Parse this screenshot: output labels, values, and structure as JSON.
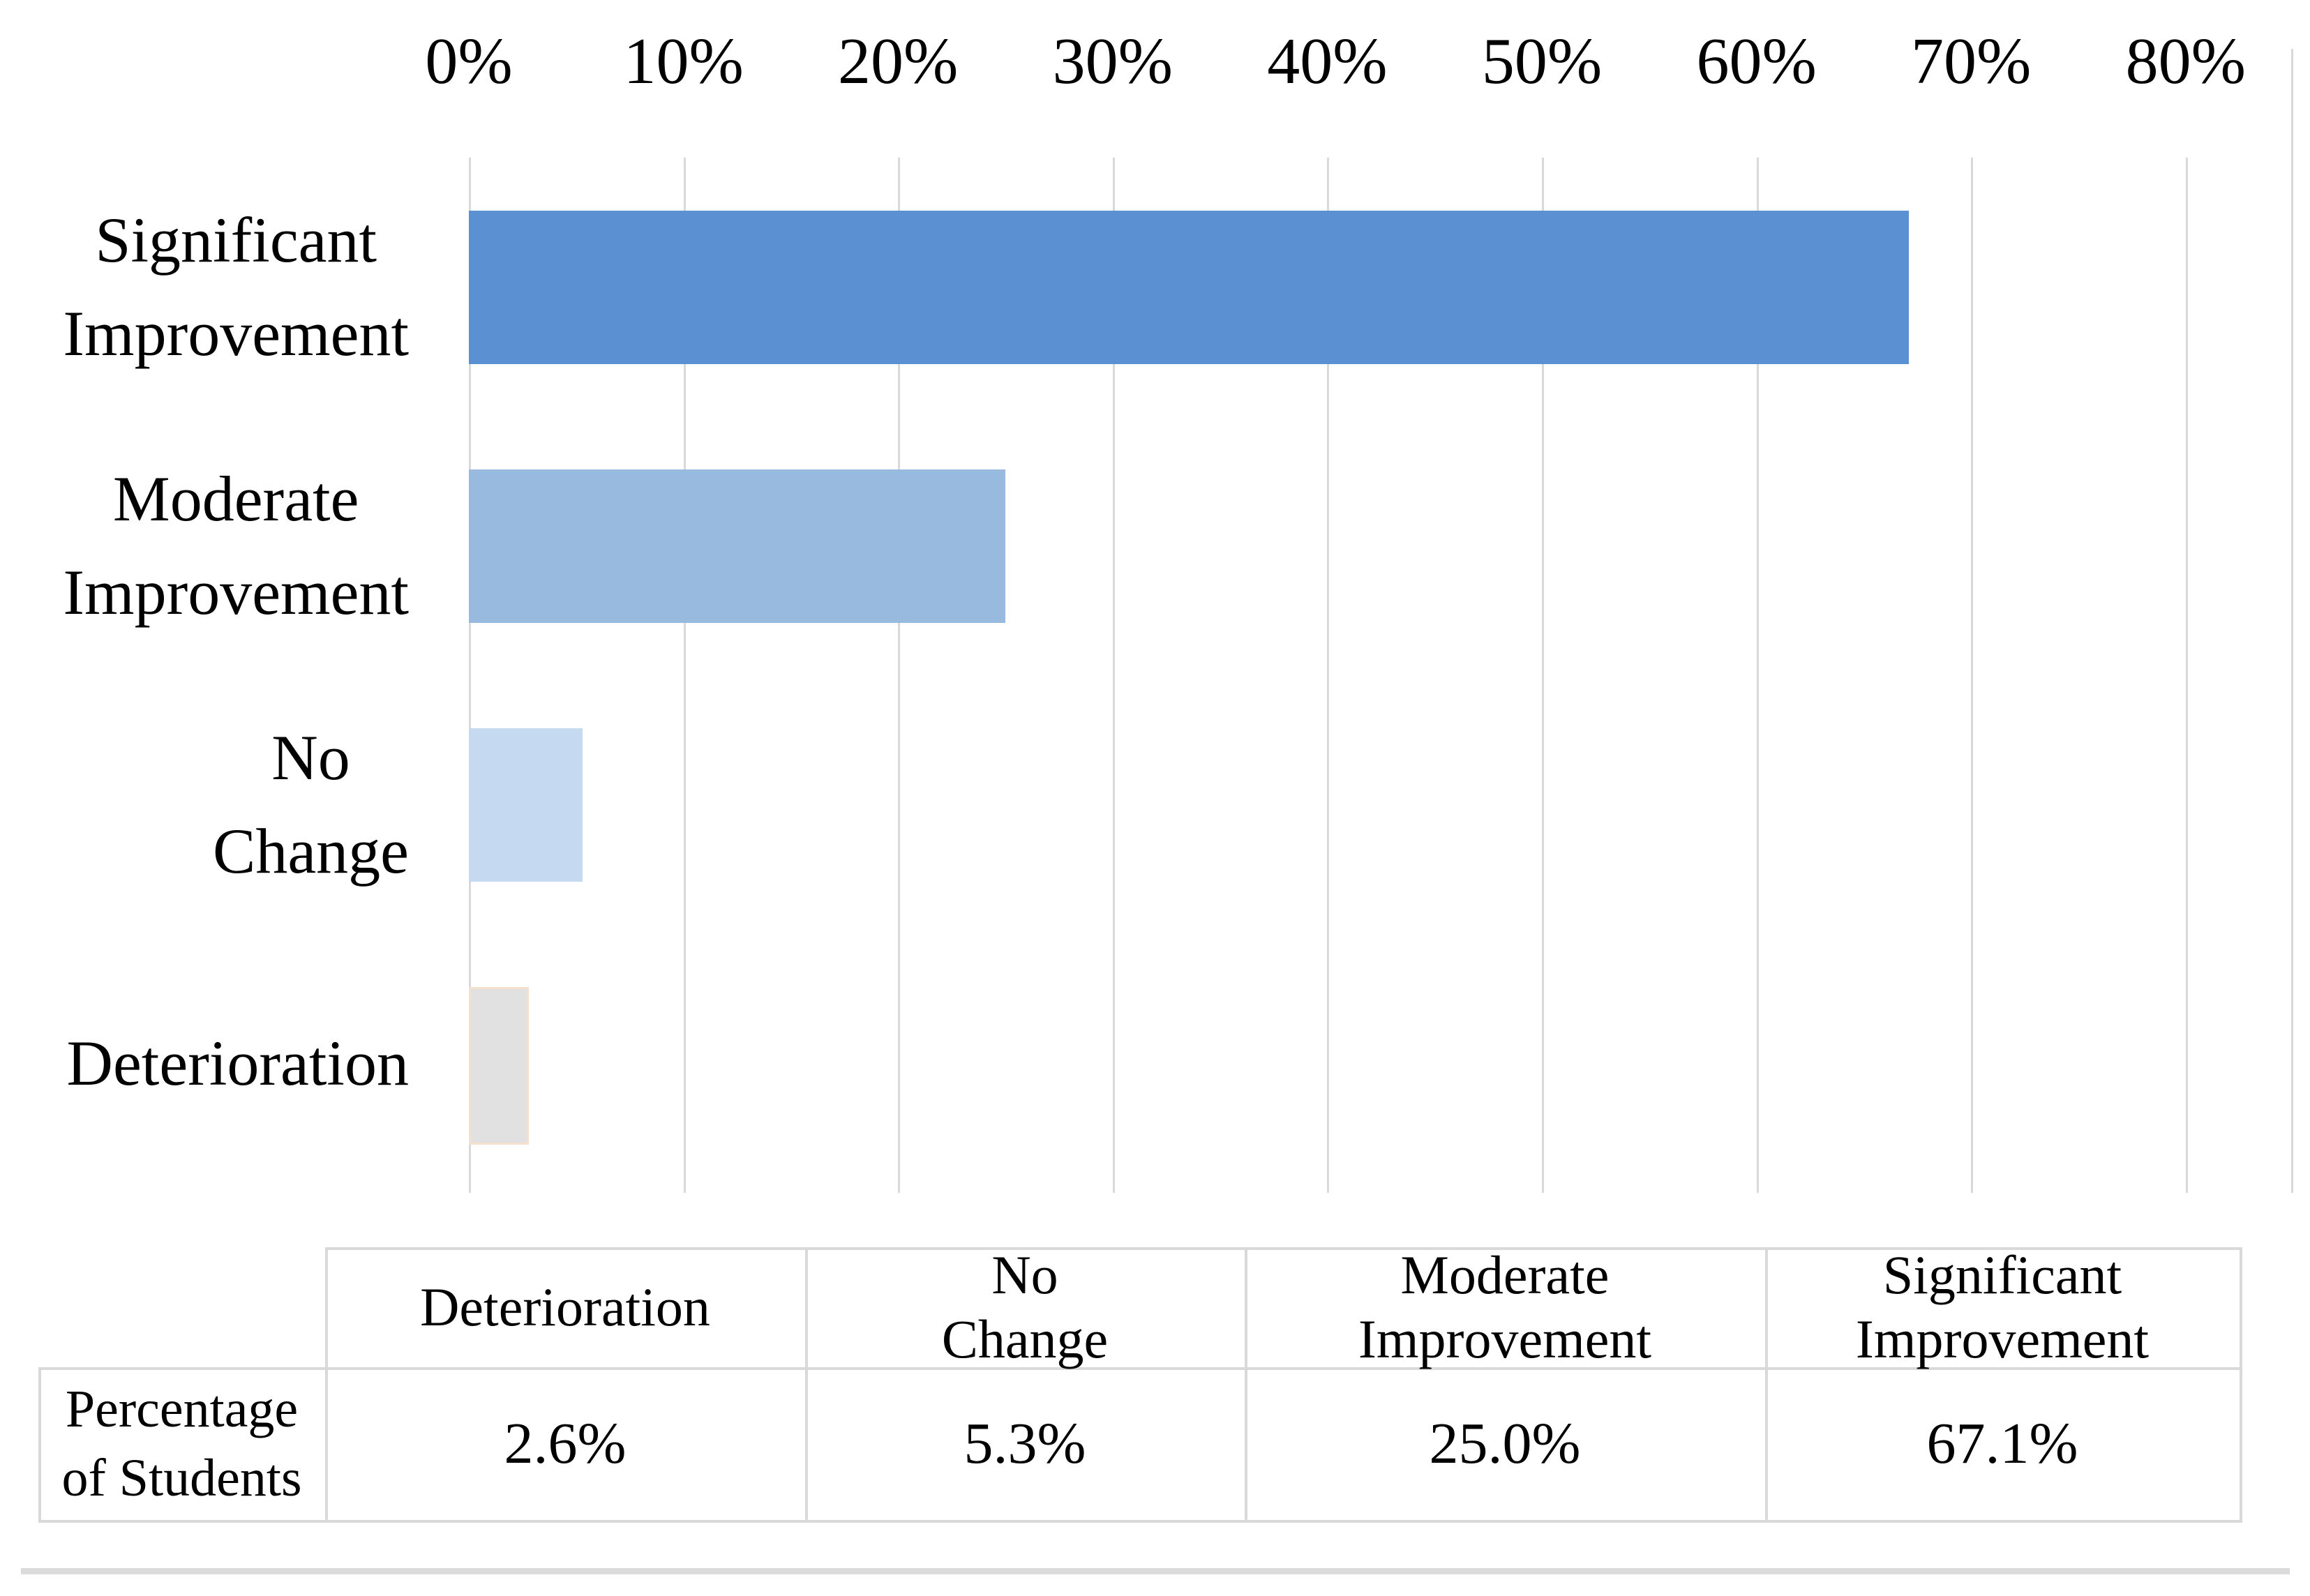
{
  "chart_data": {
    "type": "bar",
    "orientation": "horizontal",
    "title": "",
    "xlabel": "",
    "ylabel": "",
    "categories": [
      "Significant Improvement",
      "Moderate Improvement",
      "No Change",
      "Deterioration"
    ],
    "category_display": [
      "Significant\nImprovement",
      "Moderate\nImprovement",
      "No\nChange",
      "Deterioration"
    ],
    "values": [
      67.1,
      25.0,
      5.3,
      2.6
    ],
    "value_labels": [
      "67.1%",
      "25.0%",
      "5.3%",
      "2.6%"
    ],
    "x_ticks": [
      "0%",
      "10%",
      "20%",
      "30%",
      "40%",
      "50%",
      "60%",
      "70%",
      "80%"
    ],
    "x_tick_values": [
      0,
      10,
      20,
      30,
      40,
      50,
      60,
      70,
      80
    ],
    "xlim": [
      0,
      85
    ],
    "grid": true,
    "legend": "none",
    "axis_position": "top",
    "bar_colors": [
      "#5B90D2",
      "#98BADF",
      "#C5D9F0",
      "#E2E1E1"
    ],
    "deterioration_border_color": "#F5E0CE",
    "gridline_color": "#D9D9D9"
  },
  "table": {
    "row_header": "Percentage\nof Students",
    "columns": [
      {
        "header": "Deterioration",
        "value": "2.6%"
      },
      {
        "header": "No\nChange",
        "value": "5.3%"
      },
      {
        "header": "Moderate\nImprovement",
        "value": "25.0%"
      },
      {
        "header": "Significant\nImprovement",
        "value": "67.1%"
      }
    ],
    "border_color": "#D9D9D9"
  }
}
